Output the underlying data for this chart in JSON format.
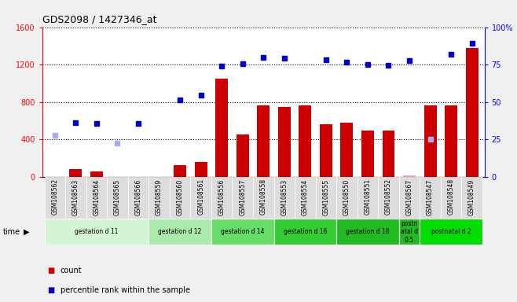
{
  "title": "GDS2098 / 1427346_at",
  "samples": [
    "GSM108562",
    "GSM108563",
    "GSM108564",
    "GSM108565",
    "GSM108566",
    "GSM108559",
    "GSM108560",
    "GSM108561",
    "GSM108556",
    "GSM108557",
    "GSM108558",
    "GSM108553",
    "GSM108554",
    "GSM108555",
    "GSM108550",
    "GSM108551",
    "GSM108552",
    "GSM108567",
    "GSM108547",
    "GSM108548",
    "GSM108549"
  ],
  "bar_values": [
    0,
    80,
    60,
    0,
    0,
    0,
    120,
    160,
    1050,
    450,
    760,
    750,
    760,
    560,
    580,
    490,
    490,
    10,
    760,
    760,
    1380
  ],
  "dot_values": [
    null,
    580,
    570,
    null,
    570,
    null,
    820,
    870,
    1180,
    1210,
    1280,
    1270,
    null,
    1250,
    1230,
    1200,
    1190,
    1240,
    null,
    1310,
    1430
  ],
  "absent_bar": [
    null,
    null,
    null,
    null,
    null,
    null,
    null,
    null,
    null,
    null,
    null,
    null,
    null,
    null,
    null,
    null,
    null,
    10,
    null,
    null,
    null
  ],
  "absent_dot": [
    440,
    null,
    null,
    360,
    null,
    null,
    null,
    null,
    null,
    null,
    null,
    null,
    null,
    null,
    null,
    null,
    null,
    null,
    400,
    null,
    null
  ],
  "groups": [
    {
      "label": "gestation d 11",
      "start": 0,
      "end": 5,
      "color": "#d4f5d4"
    },
    {
      "label": "gestation d 12",
      "start": 5,
      "end": 8,
      "color": "#aaeaaa"
    },
    {
      "label": "gestation d 14",
      "start": 8,
      "end": 11,
      "color": "#66dd66"
    },
    {
      "label": "gestation d 16",
      "start": 11,
      "end": 14,
      "color": "#33cc33"
    },
    {
      "label": "gestation d 18",
      "start": 14,
      "end": 17,
      "color": "#22bb22"
    },
    {
      "label": "postn\natal d\n0.5",
      "start": 17,
      "end": 18,
      "color": "#22bb22"
    },
    {
      "label": "postnatal d 2",
      "start": 18,
      "end": 21,
      "color": "#00dd00"
    }
  ],
  "ylim_left": [
    0,
    1600
  ],
  "ylim_right": [
    0,
    100
  ],
  "yticks_left": [
    0,
    400,
    800,
    1200,
    1600
  ],
  "yticks_right": [
    0,
    25,
    50,
    75,
    100
  ],
  "bar_color": "#cc0000",
  "dot_color": "#0000cc",
  "absent_bar_color": "#ffaaaa",
  "absent_dot_color": "#aaaaee",
  "bg_color": "#f0f0f0",
  "plot_bg": "#ffffff",
  "xticklabel_bg": "#dddddd"
}
